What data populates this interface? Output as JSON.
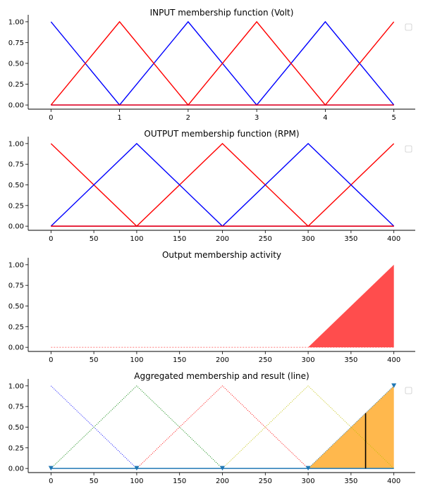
{
  "chart_data": [
    {
      "type": "line",
      "title": "INPUT membership function (Volt)",
      "xlim": [
        -0.25,
        5.25
      ],
      "ylim": [
        -0.05,
        1.05
      ],
      "xticks": [
        0,
        1,
        2,
        3,
        4,
        5
      ],
      "xtick_labels": [
        "0",
        "1",
        "2",
        "3",
        "4",
        "5"
      ],
      "yticks": [
        0,
        0.25,
        0.5,
        0.75,
        1
      ],
      "ytick_labels": [
        "0.00",
        "0.25",
        "0.50",
        "0.75",
        "1.00"
      ],
      "legend": "top-right (empty)",
      "series": [
        {
          "color": "#0000ff",
          "x": [
            0,
            1,
            2,
            3,
            4,
            5
          ],
          "y": [
            1,
            0,
            1,
            0,
            1,
            0
          ]
        },
        {
          "color": "#ff0000",
          "x": [
            0,
            1,
            2,
            3,
            4,
            5
          ],
          "y": [
            0,
            1,
            0,
            1,
            0,
            1
          ]
        },
        {
          "color": "#0000ff",
          "x": [
            0,
            5
          ],
          "y": [
            0,
            0
          ]
        },
        {
          "color": "#ff0000",
          "x": [
            0,
            5
          ],
          "y": [
            0,
            0
          ]
        }
      ]
    },
    {
      "type": "line",
      "title": "OUTPUT membership function (RPM)",
      "xlim": [
        -20,
        420
      ],
      "ylim": [
        -0.05,
        1.05
      ],
      "xticks": [
        0,
        50,
        100,
        150,
        200,
        250,
        300,
        350,
        400
      ],
      "xtick_labels": [
        "0",
        "50",
        "100",
        "150",
        "200",
        "250",
        "300",
        "350",
        "400"
      ],
      "yticks": [
        0,
        0.25,
        0.5,
        0.75,
        1
      ],
      "ytick_labels": [
        "0.00",
        "0.25",
        "0.50",
        "0.75",
        "1.00"
      ],
      "legend": "top-right (empty)",
      "series": [
        {
          "color": "#ff0000",
          "x": [
            0,
            100,
            200,
            300,
            400
          ],
          "y": [
            1,
            0,
            1,
            0,
            1
          ]
        },
        {
          "color": "#0000ff",
          "x": [
            0,
            100,
            200,
            300,
            400
          ],
          "y": [
            0,
            1,
            0,
            1,
            0
          ]
        },
        {
          "color": "#0000ff",
          "x": [
            0,
            400
          ],
          "y": [
            0,
            0
          ]
        },
        {
          "color": "#ff0000",
          "x": [
            0,
            400
          ],
          "y": [
            0,
            0
          ]
        }
      ]
    },
    {
      "type": "area",
      "title": "Output membership activity",
      "xlim": [
        -20,
        420
      ],
      "ylim": [
        -0.05,
        1.05
      ],
      "xticks": [
        0,
        50,
        100,
        150,
        200,
        250,
        300,
        350,
        400
      ],
      "xtick_labels": [
        "0",
        "50",
        "100",
        "150",
        "200",
        "250",
        "300",
        "350",
        "400"
      ],
      "yticks": [
        0,
        0.25,
        0.5,
        0.75,
        1
      ],
      "ytick_labels": [
        "0.00",
        "0.25",
        "0.50",
        "0.75",
        "1.00"
      ],
      "fills": [
        {
          "color": "#ff4d4d",
          "x": [
            300,
            400
          ],
          "y": [
            0,
            1
          ]
        }
      ],
      "series": [
        {
          "color": "#ff4d4d",
          "dashed": true,
          "x": [
            0,
            400
          ],
          "y": [
            0,
            0
          ]
        }
      ]
    },
    {
      "type": "area",
      "title": "Aggregated membership and result (line)",
      "xlim": [
        -20,
        420
      ],
      "ylim": [
        -0.05,
        1.05
      ],
      "xticks": [
        0,
        50,
        100,
        150,
        200,
        250,
        300,
        350,
        400
      ],
      "xtick_labels": [
        "0",
        "50",
        "100",
        "150",
        "200",
        "250",
        "300",
        "350",
        "400"
      ],
      "yticks": [
        0,
        0.25,
        0.5,
        0.75,
        1
      ],
      "ytick_labels": [
        "0.00",
        "0.25",
        "0.50",
        "0.75",
        "1.00"
      ],
      "legend": "top-right (empty)",
      "series": [
        {
          "color": "#0000ff",
          "dotted": true,
          "x": [
            0,
            100
          ],
          "y": [
            1,
            0
          ]
        },
        {
          "color": "#008000",
          "dotted": true,
          "x": [
            0,
            100,
            200
          ],
          "y": [
            0,
            1,
            0
          ]
        },
        {
          "color": "#ff0000",
          "dotted": true,
          "x": [
            100,
            200,
            300
          ],
          "y": [
            0,
            1,
            0
          ]
        },
        {
          "color": "#bfbf00",
          "dotted": true,
          "x": [
            200,
            300,
            400
          ],
          "y": [
            0,
            1,
            0
          ]
        },
        {
          "color": "#1f77b4",
          "dotted": true,
          "x": [
            300,
            400
          ],
          "y": [
            0,
            1
          ]
        },
        {
          "color": "#1f77b4",
          "x": [
            0,
            400
          ],
          "y": [
            0,
            0
          ]
        }
      ],
      "fills": [
        {
          "color": "#ffb84d",
          "x": [
            300,
            400
          ],
          "y": [
            0,
            1
          ]
        }
      ],
      "markers": {
        "color": "#1f77b4",
        "shape": "triangle-down",
        "x": [
          0,
          100,
          200,
          300,
          400
        ],
        "y": [
          0,
          0,
          0,
          0,
          1
        ]
      },
      "result_line": {
        "color": "#000000",
        "x": 367,
        "y": 0.67
      }
    }
  ]
}
